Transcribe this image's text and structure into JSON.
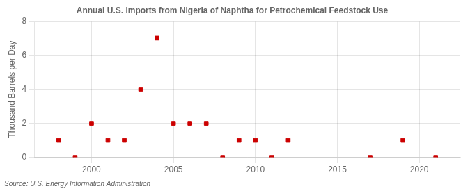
{
  "chart_data": {
    "type": "scatter",
    "title": "Annual U.S. Imports from Nigeria of Naphtha for Petrochemical Feedstock Use",
    "ylabel": "Thousand Barrels per Day",
    "annotation": "Source: U.S. Energy Information Administration",
    "x": [
      1998,
      1999,
      2000,
      2001,
      2002,
      2003,
      2004,
      2005,
      2006,
      2007,
      2008,
      2009,
      2010,
      2011,
      2012,
      2017,
      2019,
      2021
    ],
    "values": [
      1,
      0,
      2,
      1,
      1,
      4,
      7,
      2,
      2,
      2,
      0,
      1,
      1,
      0,
      1,
      0,
      1,
      0
    ],
    "color": "#cc0000",
    "marker": "square",
    "xlim": [
      1996.5,
      2022.5
    ],
    "xticks": [
      2000,
      2005,
      2010,
      2015,
      2020
    ],
    "ylim": [
      0,
      8
    ],
    "yticks": [
      0,
      2,
      4,
      6,
      8
    ],
    "grid": true
  }
}
